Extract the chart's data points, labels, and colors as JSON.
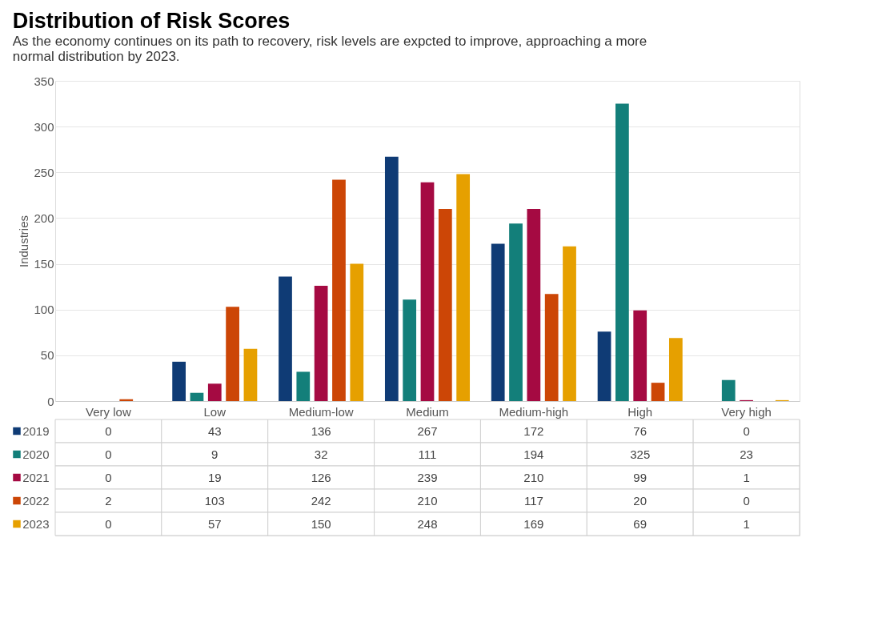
{
  "chart_data": {
    "type": "bar",
    "title": "Distribution of Risk Scores",
    "subtitle": "As the economy continues on its path to recovery, risk levels are expcted to improve, approaching a more normal distribution by 2023.",
    "ylabel": "Industries",
    "categories": [
      "Very low",
      "Low",
      "Medium-low",
      "Medium",
      "Medium-high",
      "High",
      "Very high"
    ],
    "series": [
      {
        "name": "2019",
        "color": "#0f3b75",
        "values": [
          0,
          43,
          136,
          267,
          172,
          76,
          0
        ]
      },
      {
        "name": "2020",
        "color": "#137f7a",
        "values": [
          0,
          9,
          32,
          111,
          194,
          325,
          23
        ]
      },
      {
        "name": "2021",
        "color": "#a50a42",
        "values": [
          0,
          19,
          126,
          239,
          210,
          99,
          1
        ]
      },
      {
        "name": "2022",
        "color": "#cc4606",
        "values": [
          2,
          103,
          242,
          210,
          117,
          20,
          0
        ]
      },
      {
        "name": "2023",
        "color": "#e6a000",
        "values": [
          0,
          57,
          150,
          248,
          169,
          69,
          1
        ]
      }
    ],
    "ylim": [
      0,
      350
    ],
    "yticks": [
      0,
      50,
      100,
      150,
      200,
      250,
      300,
      350
    ],
    "grid": "y",
    "legend": "bottom",
    "data_labels": true
  }
}
